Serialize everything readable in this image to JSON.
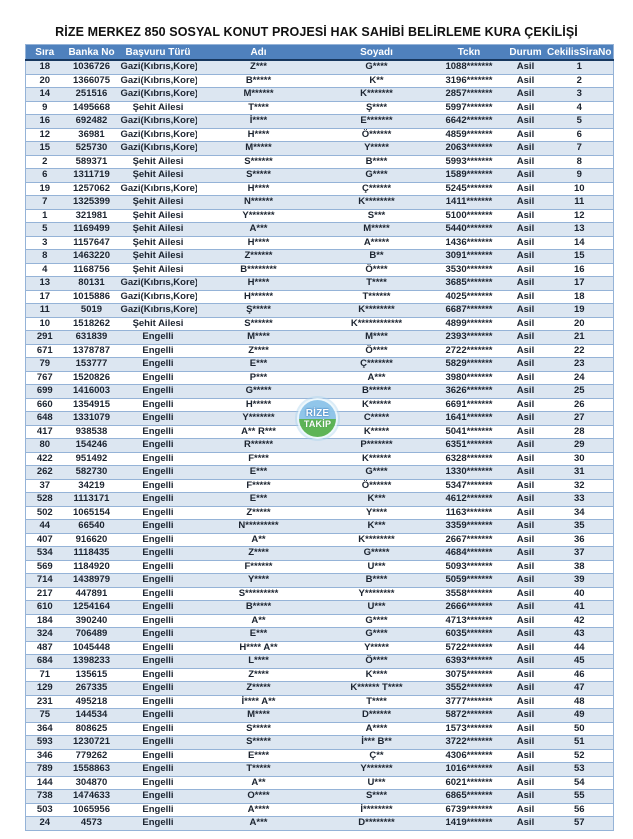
{
  "title": "RİZE MERKEZ 850 SOSYAL KONUT PROJESİ HAK SAHİBİ BELİRLEME KURA ÇEKİLİŞİ",
  "watermark": {
    "line1": "RİZE",
    "line2": "TAKİP"
  },
  "colors": {
    "header_bg": "#4f81bd",
    "header_text": "#ffffff",
    "banded_row_bg": "#dce6f1",
    "row_border": "#95b3d7",
    "header_bottom_border": "#17375e",
    "watermark_blue": "#8cc4e9",
    "watermark_green": "#57b14f"
  },
  "table": {
    "columns": [
      "Sıra",
      "Banka No",
      "Başvuru Türü",
      "Adı",
      "Soyadı",
      "Tckn",
      "Durum",
      "CekilisSiraNo"
    ],
    "rows": [
      [
        "18",
        "1036726",
        "Gazi(Kıbrıs,Kore)",
        "Z***",
        "G****",
        "1088*******",
        "Asil",
        "1"
      ],
      [
        "20",
        "1366075",
        "Gazi(Kıbrıs,Kore)",
        "B*****",
        "K**",
        "3196*******",
        "Asil",
        "2"
      ],
      [
        "14",
        "251516",
        "Gazi(Kıbrıs,Kore)",
        "M******",
        "K*******",
        "2857*******",
        "Asil",
        "3"
      ],
      [
        "9",
        "1495668",
        "Şehit Ailesi",
        "T****",
        "Ş****",
        "5997*******",
        "Asil",
        "4"
      ],
      [
        "16",
        "692482",
        "Gazi(Kıbrıs,Kore)",
        "İ****",
        "E*******",
        "6642*******",
        "Asil",
        "5"
      ],
      [
        "12",
        "36981",
        "Gazi(Kıbrıs,Kore)",
        "H****",
        "Ö******",
        "4859*******",
        "Asil",
        "6"
      ],
      [
        "15",
        "525730",
        "Gazi(Kıbrıs,Kore)",
        "M*****",
        "Y*****",
        "2063*******",
        "Asil",
        "7"
      ],
      [
        "2",
        "589371",
        "Şehit Ailesi",
        "S******",
        "B****",
        "5993*******",
        "Asil",
        "8"
      ],
      [
        "6",
        "1311719",
        "Şehit Ailesi",
        "S*****",
        "G****",
        "1589*******",
        "Asil",
        "9"
      ],
      [
        "19",
        "1257062",
        "Gazi(Kıbrıs,Kore)",
        "H****",
        "Ç******",
        "5245*******",
        "Asil",
        "10"
      ],
      [
        "7",
        "1325399",
        "Şehit Ailesi",
        "N******",
        "K********",
        "1411*******",
        "Asil",
        "11"
      ],
      [
        "1",
        "321981",
        "Şehit Ailesi",
        "Y*******",
        "S***",
        "5100*******",
        "Asil",
        "12"
      ],
      [
        "5",
        "1169499",
        "Şehit Ailesi",
        "A***",
        "M*****",
        "5440*******",
        "Asil",
        "13"
      ],
      [
        "3",
        "1157647",
        "Şehit Ailesi",
        "H****",
        "A*****",
        "1436*******",
        "Asil",
        "14"
      ],
      [
        "8",
        "1463220",
        "Şehit Ailesi",
        "Z******",
        "B**",
        "3091*******",
        "Asil",
        "15"
      ],
      [
        "4",
        "1168756",
        "Şehit Ailesi",
        "B********",
        "Ö****",
        "3530*******",
        "Asil",
        "16"
      ],
      [
        "13",
        "80131",
        "Gazi(Kıbrıs,Kore)",
        "H****",
        "T****",
        "3685*******",
        "Asil",
        "17"
      ],
      [
        "17",
        "1015886",
        "Gazi(Kıbrıs,Kore)",
        "H******",
        "T******",
        "4025*******",
        "Asil",
        "18"
      ],
      [
        "11",
        "5019",
        "Gazi(Kıbrıs,Kore)",
        "Ş*****",
        "K********",
        "6687*******",
        "Asil",
        "19"
      ],
      [
        "10",
        "1518262",
        "Şehit Ailesi",
        "S******",
        "K************",
        "4899*******",
        "Asil",
        "20"
      ],
      [
        "291",
        "631839",
        "Engelli",
        "M****",
        "M****",
        "2393*******",
        "Asil",
        "21"
      ],
      [
        "671",
        "1378787",
        "Engelli",
        "Z****",
        "Ö****",
        "2722*******",
        "Asil",
        "22"
      ],
      [
        "79",
        "153777",
        "Engelli",
        "E***",
        "Ç*******",
        "5829*******",
        "Asil",
        "23"
      ],
      [
        "767",
        "1520826",
        "Engelli",
        "P***",
        "A***",
        "3980*******",
        "Asil",
        "24"
      ],
      [
        "699",
        "1416003",
        "Engelli",
        "G*****",
        "B******",
        "3626*******",
        "Asil",
        "25"
      ],
      [
        "660",
        "1354915",
        "Engelli",
        "H*****",
        "K******",
        "6691*******",
        "Asil",
        "26"
      ],
      [
        "648",
        "1331079",
        "Engelli",
        "Y*******",
        "C*****",
        "1641*******",
        "Asil",
        "27"
      ],
      [
        "417",
        "938538",
        "Engelli",
        "A** R***",
        "K*****",
        "5041*******",
        "Asil",
        "28"
      ],
      [
        "80",
        "154246",
        "Engelli",
        "R******",
        "P*******",
        "6351*******",
        "Asil",
        "29"
      ],
      [
        "422",
        "951492",
        "Engelli",
        "F****",
        "K******",
        "6328*******",
        "Asil",
        "30"
      ],
      [
        "262",
        "582730",
        "Engelli",
        "E***",
        "G****",
        "1330*******",
        "Asil",
        "31"
      ],
      [
        "37",
        "34219",
        "Engelli",
        "F*****",
        "Ö******",
        "5347*******",
        "Asil",
        "32"
      ],
      [
        "528",
        "1113171",
        "Engelli",
        "E***",
        "K***",
        "4612*******",
        "Asil",
        "33"
      ],
      [
        "502",
        "1065154",
        "Engelli",
        "Z*****",
        "Y****",
        "1163*******",
        "Asil",
        "34"
      ],
      [
        "44",
        "66540",
        "Engelli",
        "N*********",
        "K***",
        "3359*******",
        "Asil",
        "35"
      ],
      [
        "407",
        "916620",
        "Engelli",
        "A**",
        "K********",
        "2667*******",
        "Asil",
        "36"
      ],
      [
        "534",
        "1118435",
        "Engelli",
        "Z****",
        "G*****",
        "4684*******",
        "Asil",
        "37"
      ],
      [
        "569",
        "1184920",
        "Engelli",
        "F******",
        "U***",
        "5093*******",
        "Asil",
        "38"
      ],
      [
        "714",
        "1438979",
        "Engelli",
        "Y****",
        "B****",
        "5059*******",
        "Asil",
        "39"
      ],
      [
        "217",
        "447891",
        "Engelli",
        "S*********",
        "Y********",
        "3558*******",
        "Asil",
        "40"
      ],
      [
        "610",
        "1254164",
        "Engelli",
        "B*****",
        "U***",
        "2666*******",
        "Asil",
        "41"
      ],
      [
        "184",
        "390240",
        "Engelli",
        "A**",
        "G****",
        "4713*******",
        "Asil",
        "42"
      ],
      [
        "324",
        "706489",
        "Engelli",
        "E***",
        "G****",
        "6035*******",
        "Asil",
        "43"
      ],
      [
        "487",
        "1045448",
        "Engelli",
        "H**** A**",
        "Y*****",
        "5722*******",
        "Asil",
        "44"
      ],
      [
        "684",
        "1398233",
        "Engelli",
        "L****",
        "Ö****",
        "6393*******",
        "Asil",
        "45"
      ],
      [
        "71",
        "135615",
        "Engelli",
        "Z****",
        "K****",
        "3075*******",
        "Asil",
        "46"
      ],
      [
        "129",
        "267335",
        "Engelli",
        "Z*****",
        "K****** T****",
        "3552*******",
        "Asil",
        "47"
      ],
      [
        "231",
        "495218",
        "Engelli",
        "İ**** A**",
        "T****",
        "3777*******",
        "Asil",
        "48"
      ],
      [
        "75",
        "144534",
        "Engelli",
        "M****",
        "D******",
        "5872*******",
        "Asil",
        "49"
      ],
      [
        "364",
        "808625",
        "Engelli",
        "S*****",
        "A****",
        "1573*******",
        "Asil",
        "50"
      ],
      [
        "593",
        "1230721",
        "Engelli",
        "S*****",
        "İ*** B**",
        "3722*******",
        "Asil",
        "51"
      ],
      [
        "346",
        "779262",
        "Engelli",
        "E****",
        "Ç**",
        "4306*******",
        "Asil",
        "52"
      ],
      [
        "789",
        "1558863",
        "Engelli",
        "T*****",
        "Y*******",
        "1016*******",
        "Asil",
        "53"
      ],
      [
        "144",
        "304870",
        "Engelli",
        "A**",
        "U***",
        "6021*******",
        "Asil",
        "54"
      ],
      [
        "738",
        "1474633",
        "Engelli",
        "O****",
        "S****",
        "6865*******",
        "Asil",
        "55"
      ],
      [
        "503",
        "1065956",
        "Engelli",
        "A****",
        "İ********",
        "6739*******",
        "Asil",
        "56"
      ],
      [
        "24",
        "4573",
        "Engelli",
        "A***",
        "D********",
        "1419*******",
        "Asil",
        "57"
      ]
    ]
  }
}
